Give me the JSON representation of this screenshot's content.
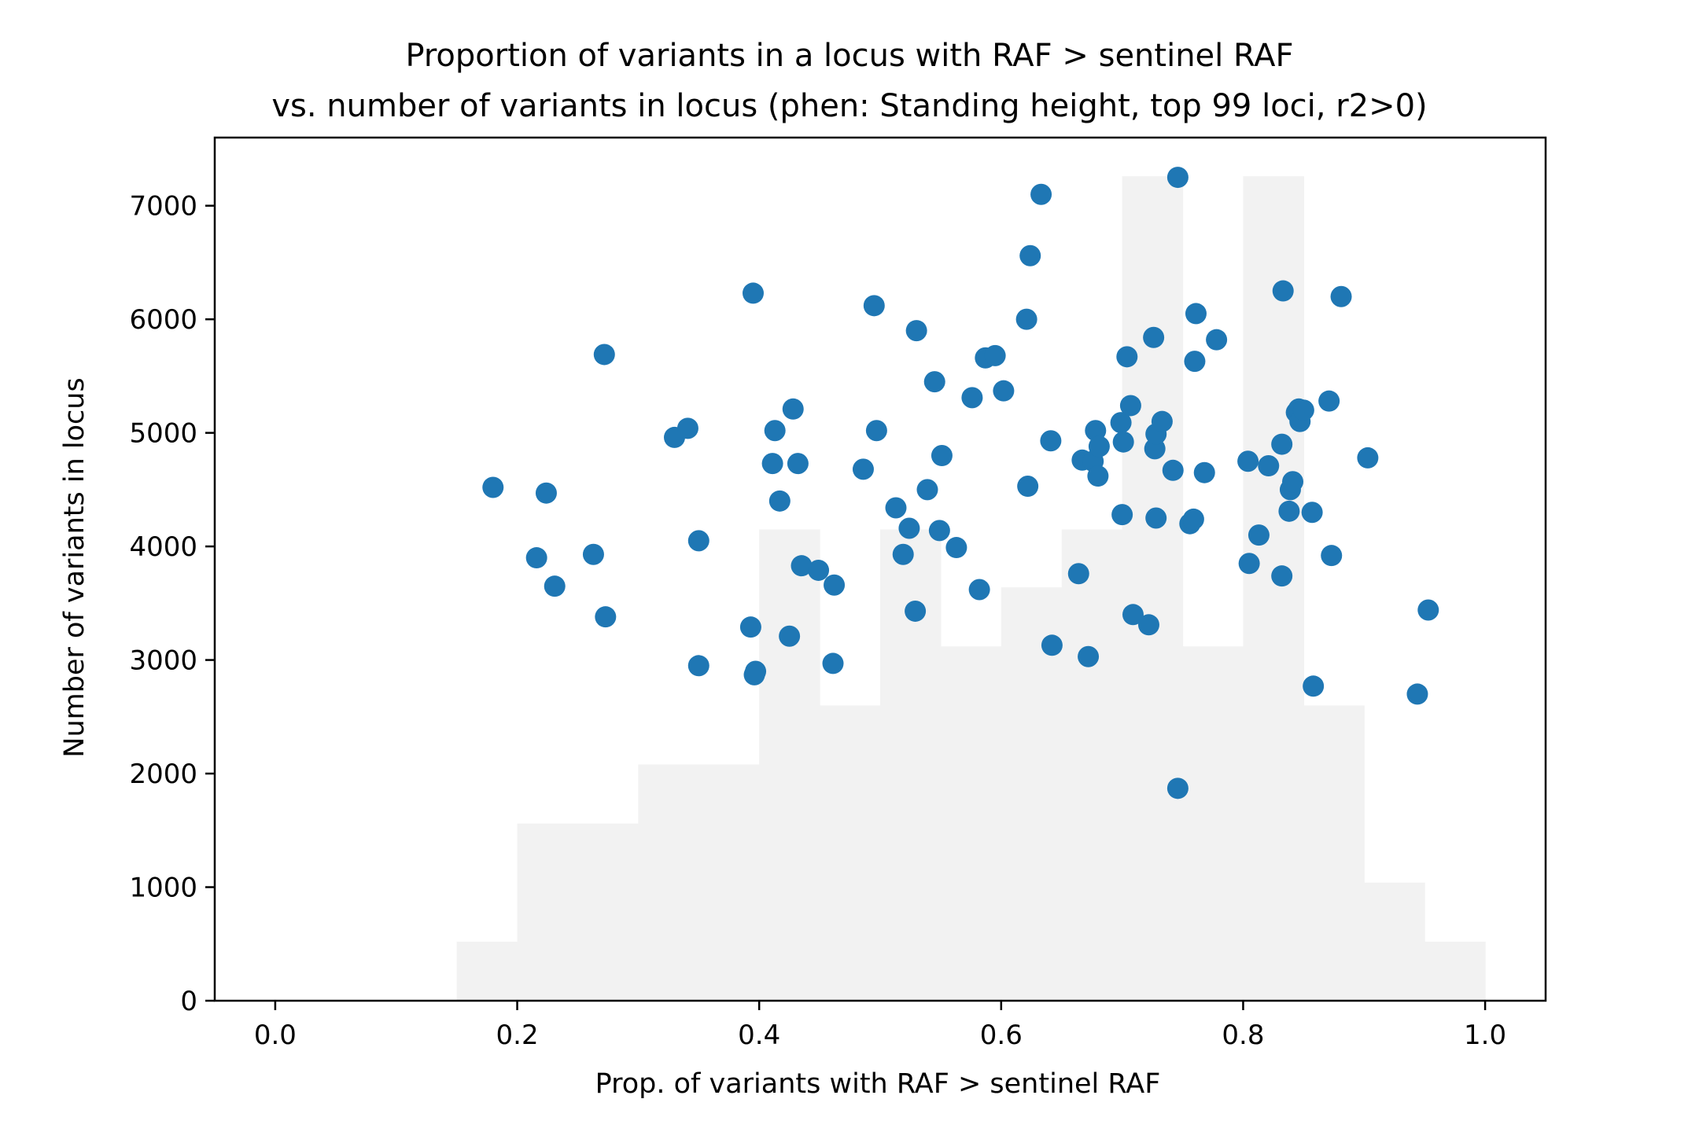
{
  "chart_data": {
    "type": "scatter",
    "title": "Proportion of variants in a locus with RAF > sentinel RAF",
    "subtitle": "vs. number of variants in locus (phen: Standing height, top 99 loci, r2>0)",
    "xlabel": "Prop. of variants with RAF > sentinel RAF",
    "ylabel": "Number of variants in locus",
    "xlim": [
      -0.05,
      1.05
    ],
    "ylim": [
      0,
      7600
    ],
    "xticks": [
      0.0,
      0.2,
      0.4,
      0.6,
      0.8,
      1.0
    ],
    "xtick_labels": [
      "0.0",
      "0.2",
      "0.4",
      "0.6",
      "0.8",
      "1.0"
    ],
    "yticks": [
      0,
      1000,
      2000,
      3000,
      4000,
      5000,
      6000,
      7000
    ],
    "ytick_labels": [
      "0",
      "1000",
      "2000",
      "3000",
      "4000",
      "5000",
      "6000",
      "7000"
    ],
    "grid": false,
    "colors": {
      "points": "#1f77b4",
      "histogram": "#f2f2f2",
      "axes": "#000000"
    },
    "histogram_background": {
      "bin_edges": [
        0.15,
        0.2,
        0.3,
        0.4,
        0.45,
        0.5,
        0.55,
        0.6,
        0.65,
        0.7,
        0.75,
        0.8,
        0.85,
        0.9,
        0.95,
        1.0
      ],
      "heights": [
        520,
        1560,
        2080,
        4150,
        2600,
        4150,
        3120,
        3640,
        4150,
        7260,
        3120,
        7260,
        2600,
        1040,
        520
      ]
    },
    "points": [
      {
        "x": 0.18,
        "y": 4520
      },
      {
        "x": 0.216,
        "y": 3900
      },
      {
        "x": 0.224,
        "y": 4470
      },
      {
        "x": 0.231,
        "y": 3650
      },
      {
        "x": 0.263,
        "y": 3930
      },
      {
        "x": 0.272,
        "y": 5690
      },
      {
        "x": 0.273,
        "y": 3380
      },
      {
        "x": 0.33,
        "y": 4960
      },
      {
        "x": 0.341,
        "y": 5040
      },
      {
        "x": 0.35,
        "y": 4050
      },
      {
        "x": 0.35,
        "y": 2950
      },
      {
        "x": 0.393,
        "y": 3290
      },
      {
        "x": 0.395,
        "y": 6230
      },
      {
        "x": 0.396,
        "y": 2870
      },
      {
        "x": 0.397,
        "y": 2900
      },
      {
        "x": 0.411,
        "y": 4730
      },
      {
        "x": 0.413,
        "y": 5020
      },
      {
        "x": 0.417,
        "y": 4400
      },
      {
        "x": 0.425,
        "y": 3210
      },
      {
        "x": 0.428,
        "y": 5210
      },
      {
        "x": 0.432,
        "y": 4730
      },
      {
        "x": 0.435,
        "y": 3830
      },
      {
        "x": 0.449,
        "y": 3790
      },
      {
        "x": 0.461,
        "y": 2970
      },
      {
        "x": 0.462,
        "y": 3660
      },
      {
        "x": 0.486,
        "y": 4680
      },
      {
        "x": 0.495,
        "y": 6120
      },
      {
        "x": 0.497,
        "y": 5020
      },
      {
        "x": 0.513,
        "y": 4340
      },
      {
        "x": 0.519,
        "y": 3930
      },
      {
        "x": 0.524,
        "y": 4160
      },
      {
        "x": 0.529,
        "y": 3430
      },
      {
        "x": 0.53,
        "y": 5900
      },
      {
        "x": 0.539,
        "y": 4500
      },
      {
        "x": 0.545,
        "y": 5450
      },
      {
        "x": 0.549,
        "y": 4140
      },
      {
        "x": 0.551,
        "y": 4800
      },
      {
        "x": 0.563,
        "y": 3990
      },
      {
        "x": 0.576,
        "y": 5310
      },
      {
        "x": 0.582,
        "y": 3620
      },
      {
        "x": 0.587,
        "y": 5660
      },
      {
        "x": 0.595,
        "y": 5680
      },
      {
        "x": 0.602,
        "y": 5370
      },
      {
        "x": 0.621,
        "y": 6000
      },
      {
        "x": 0.622,
        "y": 4530
      },
      {
        "x": 0.624,
        "y": 6560
      },
      {
        "x": 0.633,
        "y": 7100
      },
      {
        "x": 0.641,
        "y": 4930
      },
      {
        "x": 0.642,
        "y": 3130
      },
      {
        "x": 0.664,
        "y": 3760
      },
      {
        "x": 0.667,
        "y": 4760
      },
      {
        "x": 0.672,
        "y": 3030
      },
      {
        "x": 0.676,
        "y": 4750
      },
      {
        "x": 0.678,
        "y": 5020
      },
      {
        "x": 0.68,
        "y": 4620
      },
      {
        "x": 0.681,
        "y": 4880
      },
      {
        "x": 0.699,
        "y": 5090
      },
      {
        "x": 0.7,
        "y": 4280
      },
      {
        "x": 0.701,
        "y": 4920
      },
      {
        "x": 0.704,
        "y": 5670
      },
      {
        "x": 0.707,
        "y": 5240
      },
      {
        "x": 0.709,
        "y": 3400
      },
      {
        "x": 0.722,
        "y": 3310
      },
      {
        "x": 0.726,
        "y": 5840
      },
      {
        "x": 0.727,
        "y": 4860
      },
      {
        "x": 0.728,
        "y": 4990
      },
      {
        "x": 0.728,
        "y": 4250
      },
      {
        "x": 0.733,
        "y": 5100
      },
      {
        "x": 0.742,
        "y": 4670
      },
      {
        "x": 0.746,
        "y": 7250
      },
      {
        "x": 0.746,
        "y": 1870
      },
      {
        "x": 0.756,
        "y": 4200
      },
      {
        "x": 0.759,
        "y": 4240
      },
      {
        "x": 0.76,
        "y": 5630
      },
      {
        "x": 0.761,
        "y": 6050
      },
      {
        "x": 0.768,
        "y": 4650
      },
      {
        "x": 0.778,
        "y": 5820
      },
      {
        "x": 0.804,
        "y": 4750
      },
      {
        "x": 0.805,
        "y": 3850
      },
      {
        "x": 0.813,
        "y": 4100
      },
      {
        "x": 0.821,
        "y": 4710
      },
      {
        "x": 0.832,
        "y": 4900
      },
      {
        "x": 0.832,
        "y": 3740
      },
      {
        "x": 0.833,
        "y": 6250
      },
      {
        "x": 0.838,
        "y": 4310
      },
      {
        "x": 0.839,
        "y": 4500
      },
      {
        "x": 0.841,
        "y": 4570
      },
      {
        "x": 0.844,
        "y": 5180
      },
      {
        "x": 0.846,
        "y": 5210
      },
      {
        "x": 0.847,
        "y": 5100
      },
      {
        "x": 0.85,
        "y": 5200
      },
      {
        "x": 0.857,
        "y": 4300
      },
      {
        "x": 0.858,
        "y": 2770
      },
      {
        "x": 0.871,
        "y": 5280
      },
      {
        "x": 0.873,
        "y": 3920
      },
      {
        "x": 0.881,
        "y": 6200
      },
      {
        "x": 0.903,
        "y": 4780
      },
      {
        "x": 0.944,
        "y": 2700
      },
      {
        "x": 0.953,
        "y": 3440
      }
    ]
  }
}
